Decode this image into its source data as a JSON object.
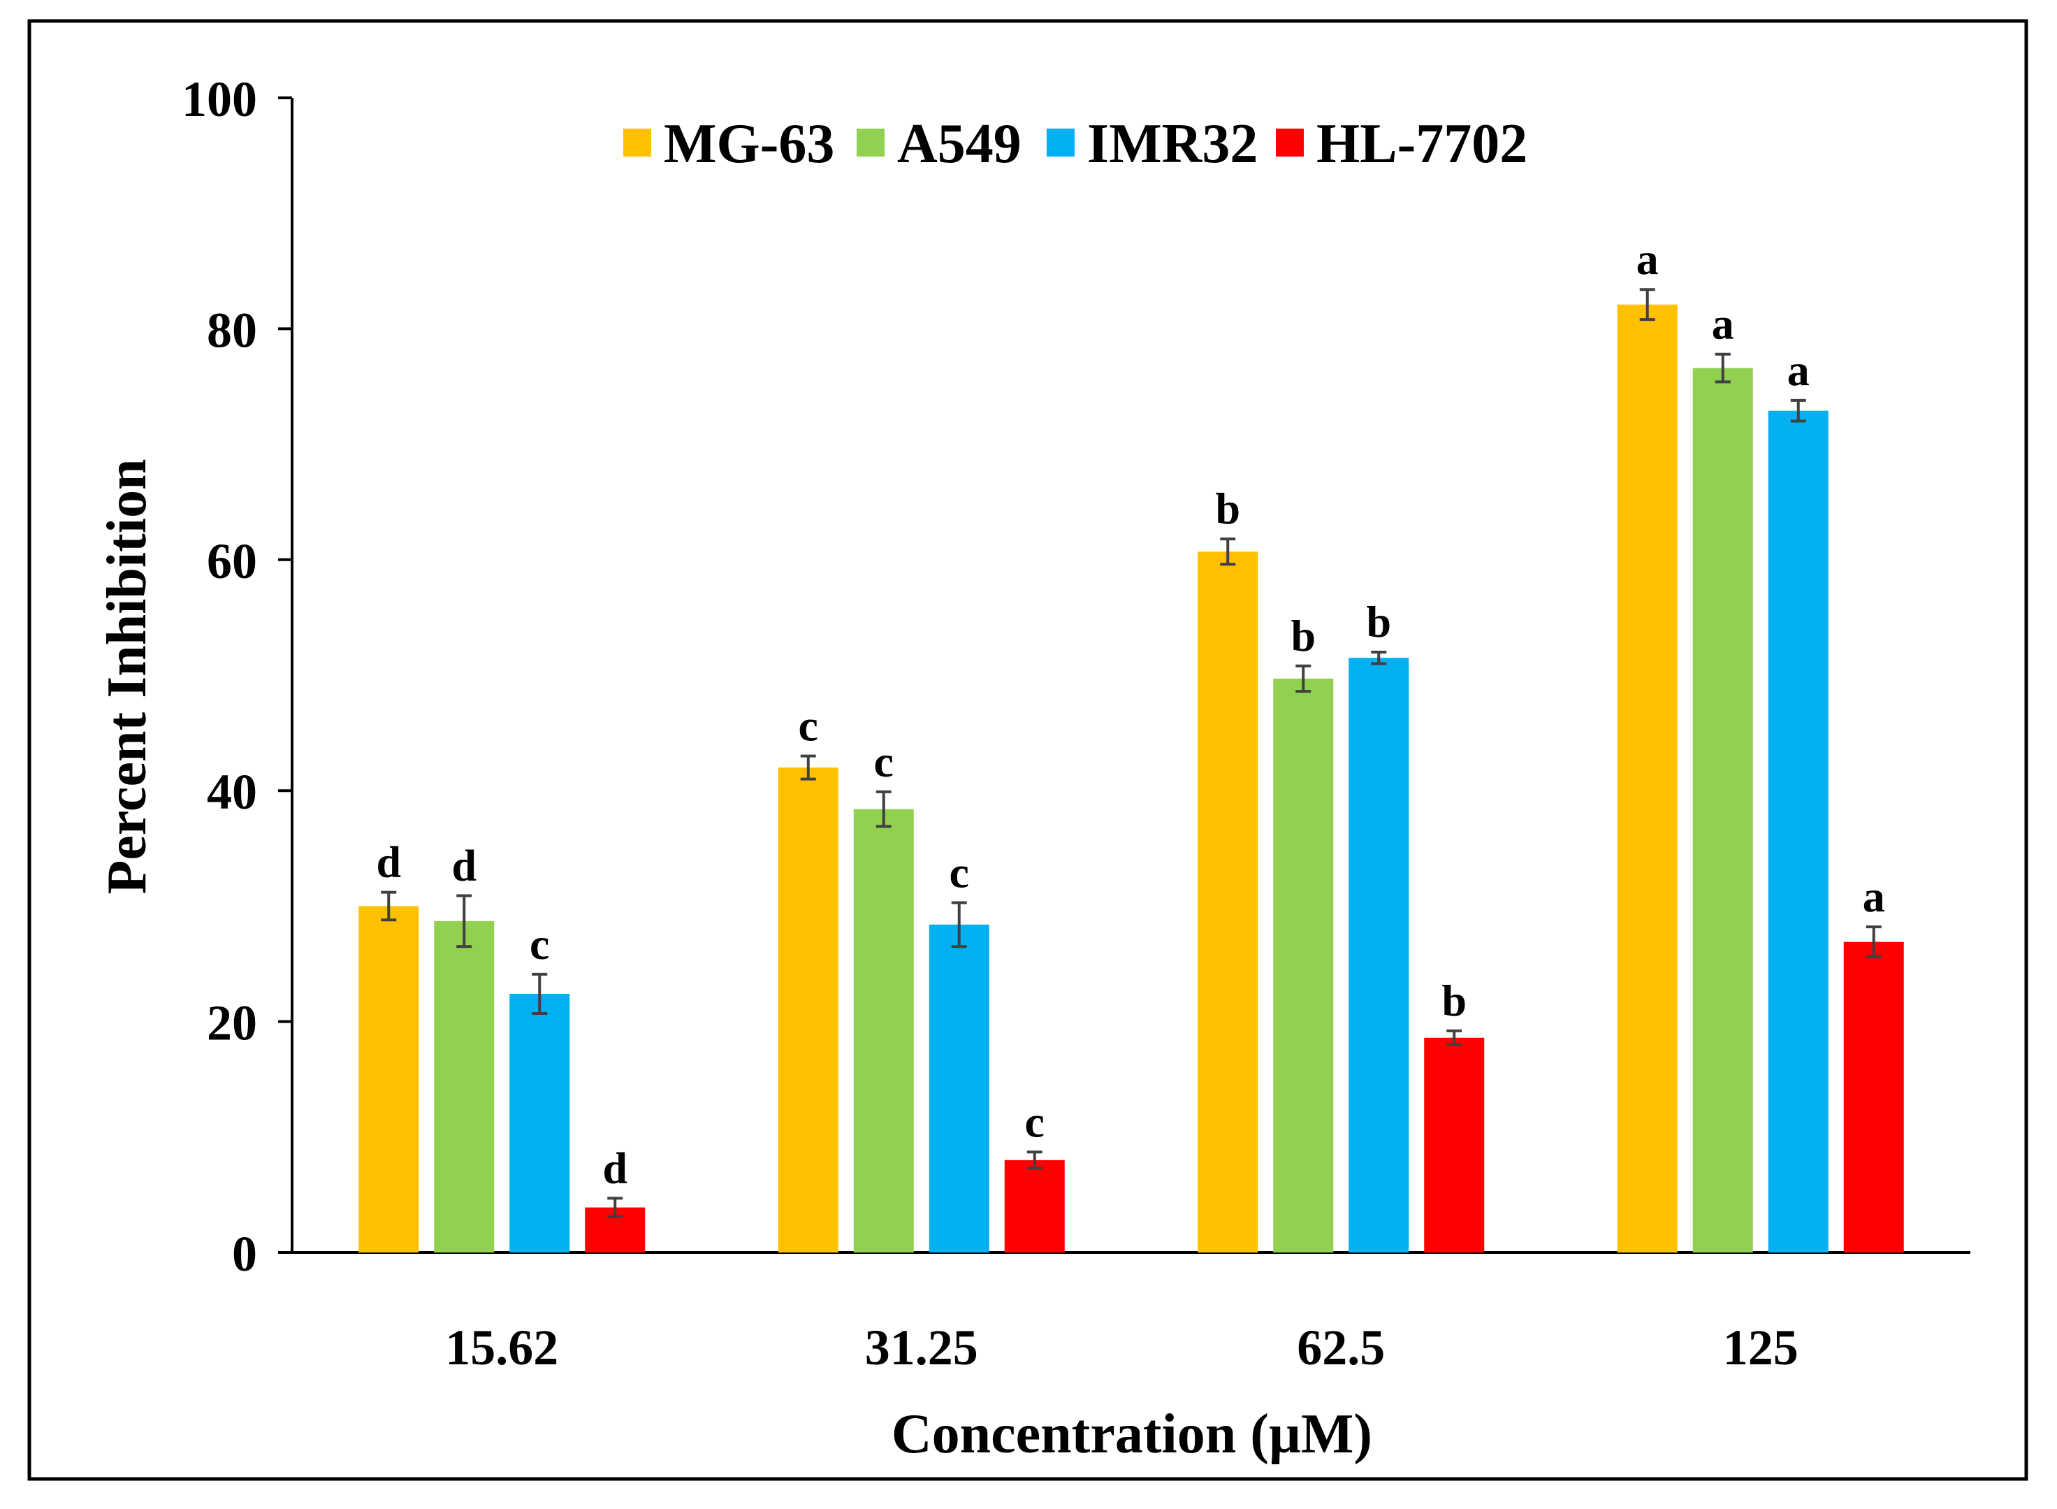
{
  "chart_data": {
    "type": "bar",
    "title": "",
    "xlabel": "Concentration (µM)",
    "ylabel": "Percent Inhibition",
    "ylim": [
      0,
      100
    ],
    "yticks": [
      "0",
      "20",
      "40",
      "60",
      "80",
      "100"
    ],
    "categories": [
      "15.62",
      "31.25",
      "62.5",
      "125"
    ],
    "legend_position": "top-center",
    "series": [
      {
        "name": "MG-63",
        "color": "#FFC000",
        "values": [
          30.0,
          42.0,
          60.7,
          82.1
        ],
        "errors": [
          1.2,
          1.0,
          1.1,
          1.3
        ],
        "labels": [
          "d",
          "c",
          "b",
          "a"
        ]
      },
      {
        "name": "A549",
        "color": "#92D050",
        "values": [
          28.7,
          38.4,
          49.7,
          76.6
        ],
        "errors": [
          2.2,
          1.5,
          1.1,
          1.2
        ],
        "labels": [
          "d",
          "c",
          "b",
          "a"
        ]
      },
      {
        "name": "IMR32",
        "color": "#00B0F0",
        "values": [
          22.4,
          28.4,
          51.5,
          72.9
        ],
        "errors": [
          1.7,
          1.9,
          0.5,
          0.9
        ],
        "labels": [
          "c",
          "c",
          "b",
          "a"
        ]
      },
      {
        "name": "HL-7702",
        "color": "#FF0000",
        "values": [
          3.9,
          8.0,
          18.6,
          26.9
        ],
        "errors": [
          0.8,
          0.7,
          0.6,
          1.3
        ],
        "labels": [
          "d",
          "c",
          "b",
          "a"
        ]
      }
    ]
  }
}
